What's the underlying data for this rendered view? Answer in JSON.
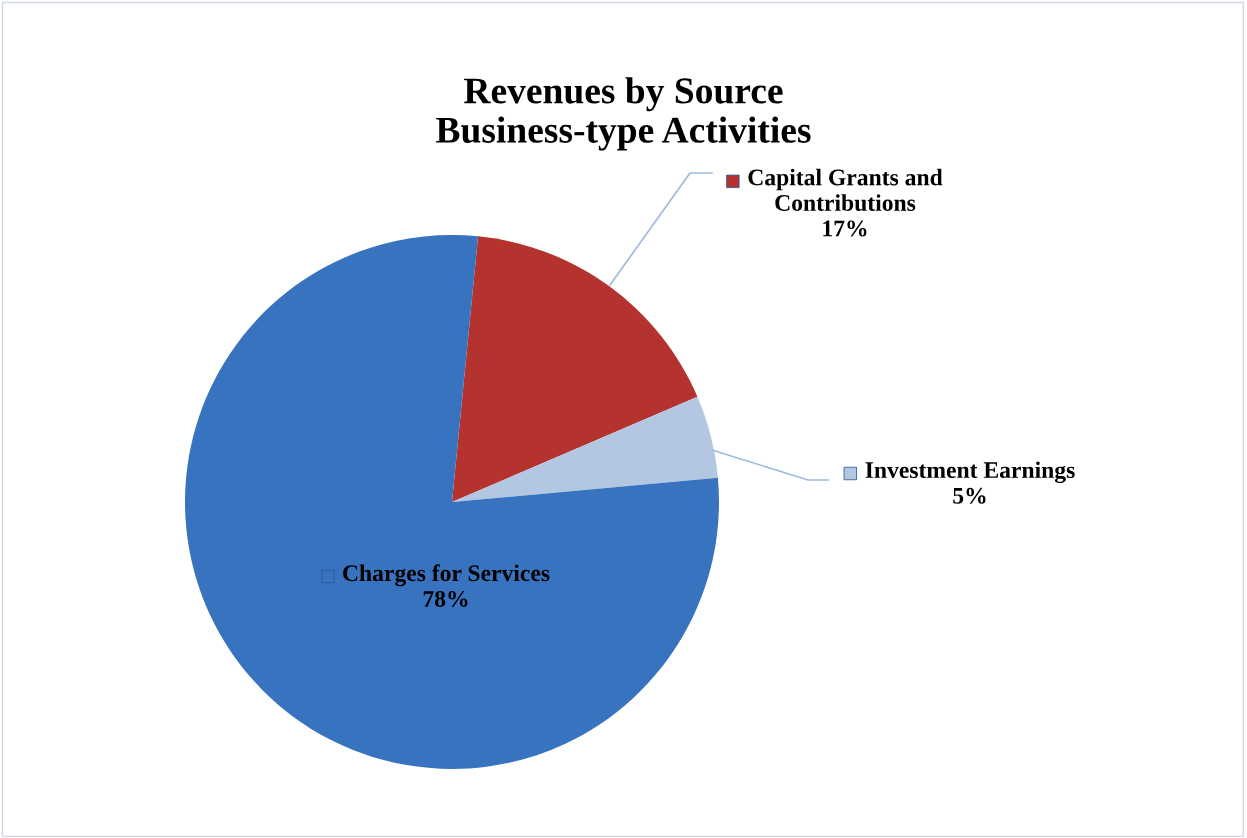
{
  "chart_data": {
    "type": "pie",
    "title": "Revenues by Source\nBusiness-type Activities",
    "categories": [
      "Capital Grants and\nContributions",
      "Investment Earnings",
      "Charges for Services"
    ],
    "values": [
      17,
      5,
      78
    ],
    "value_labels": [
      "17%",
      "5%",
      "78%"
    ],
    "colors": [
      "#b5332f",
      "#b4c7e2",
      "#3873c0"
    ],
    "legend": "right"
  }
}
